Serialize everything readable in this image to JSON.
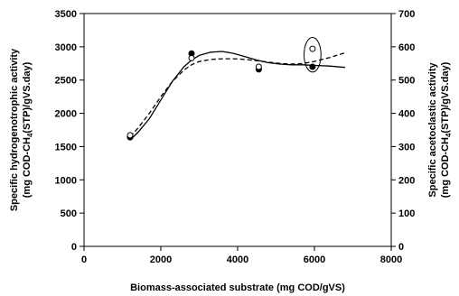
{
  "chart_data": {
    "type": "scatter",
    "xlabel": "Biomass-associated substrate (mg COD/gVS)",
    "ylabel_left": [
      "Specific hydrogenotrophic activity",
      "(mg COD-CH",
      "4",
      "(STP)/gVS.day)"
    ],
    "ylabel_right": [
      "Specific acetoclastic activity",
      "(mg COD-CH",
      "4",
      "(STP)/gVS.day)"
    ],
    "xlim": [
      0,
      8000
    ],
    "ylim_left": [
      0,
      3500
    ],
    "ylim_right": [
      0,
      700
    ],
    "x_ticks": [
      "0",
      "2000",
      "4000",
      "6000",
      "8000"
    ],
    "y_left_ticks": [
      "0",
      "500",
      "1000",
      "1500",
      "2000",
      "2500",
      "3000",
      "3500"
    ],
    "y_right_ticks": [
      "0",
      "100",
      "200",
      "300",
      "400",
      "500",
      "600",
      "700"
    ],
    "grid": false,
    "series": [
      {
        "marker": "filled-circle",
        "axis": "left",
        "points": [
          [
            1200,
            1640
          ],
          [
            2800,
            2900
          ],
          [
            4550,
            2660
          ],
          [
            5950,
            2700
          ]
        ],
        "fit": {
          "style": "solid",
          "x": [
            1200,
            1400,
            1700,
            2000,
            2300,
            2600,
            2800,
            3000,
            3300,
            3600,
            3900,
            4200,
            4500,
            4800,
            5100,
            5400,
            5700,
            6000,
            6400,
            6800
          ],
          "y": [
            1600,
            1710,
            1920,
            2200,
            2480,
            2700,
            2800,
            2870,
            2920,
            2930,
            2900,
            2850,
            2800,
            2760,
            2740,
            2730,
            2730,
            2720,
            2710,
            2690
          ]
        }
      },
      {
        "marker": "open-circle",
        "axis": "right",
        "points": [
          [
            1200,
            334
          ],
          [
            2800,
            566
          ],
          [
            4550,
            540
          ],
          [
            5950,
            594
          ]
        ],
        "fit": {
          "style": "dashed",
          "x": [
            1200,
            1400,
            1700,
            2000,
            2300,
            2600,
            2800,
            3000,
            3300,
            3600,
            3900,
            4200,
            4500,
            4800,
            5100,
            5400,
            5700,
            6000,
            6400,
            6800
          ],
          "y": [
            330,
            355,
            400,
            450,
            496,
            530,
            546,
            556,
            562,
            564,
            564,
            562,
            558,
            554,
            550,
            548,
            550,
            556,
            568,
            582
          ]
        }
      }
    ],
    "annotations": [
      {
        "type": "ellipse",
        "x": 5950,
        "y_left": 2880,
        "rx_data": 220,
        "ry_data": 260
      }
    ]
  }
}
